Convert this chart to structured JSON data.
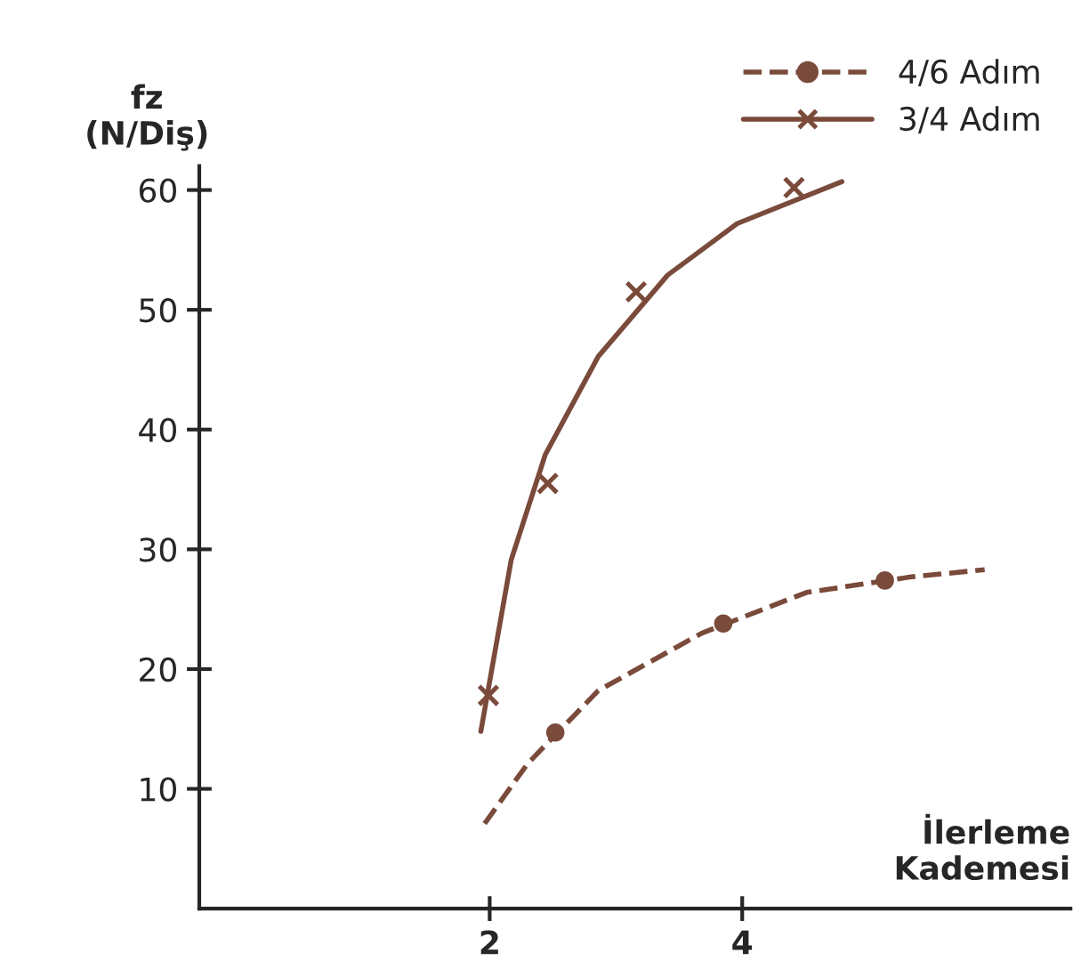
{
  "chart_data": {
    "type": "scatter",
    "ylabel": "fz\n(N/Diş)",
    "xlabel": "İlerleme\nKademesi",
    "xlim": [
      -0.3,
      6.6
    ],
    "xticks": [
      2,
      4
    ],
    "ylim": [
      0,
      62
    ],
    "yticks": [
      10,
      20,
      30,
      40,
      50,
      60
    ],
    "grid": false,
    "legend": "top right",
    "series": [
      {
        "name": "4/6 Adım",
        "marker": "circle",
        "color": "#7a4a3a",
        "x": [
          2.52,
          3.85,
          5.13
        ],
        "values": [
          14.7,
          23.8,
          27.4
        ]
      },
      {
        "name": "3/4 Adım",
        "marker": "cross",
        "color": "#7a4a3a",
        "x": [
          1.99,
          2.46,
          3.16,
          4.41
        ],
        "values": [
          17.8,
          35.5,
          51.5,
          60.2
        ]
      },
      {
        "type": "line",
        "line_style": "dashed",
        "color": "#7a4a3a",
        "x": [
          1.96,
          2.3,
          2.86,
          3.68,
          4.51,
          5.34,
          5.92
        ],
        "values": [
          7.1,
          12.1,
          18.2,
          23.0,
          26.4,
          27.7,
          28.3
        ]
      },
      {
        "type": "line",
        "line_style": "solid",
        "color": "#7a4a3a",
        "x": [
          1.93,
          2.17,
          2.44,
          2.86,
          3.41,
          3.96,
          4.79
        ],
        "values": [
          14.8,
          29.1,
          37.9,
          46.1,
          52.9,
          57.2,
          60.7
        ]
      }
    ]
  }
}
